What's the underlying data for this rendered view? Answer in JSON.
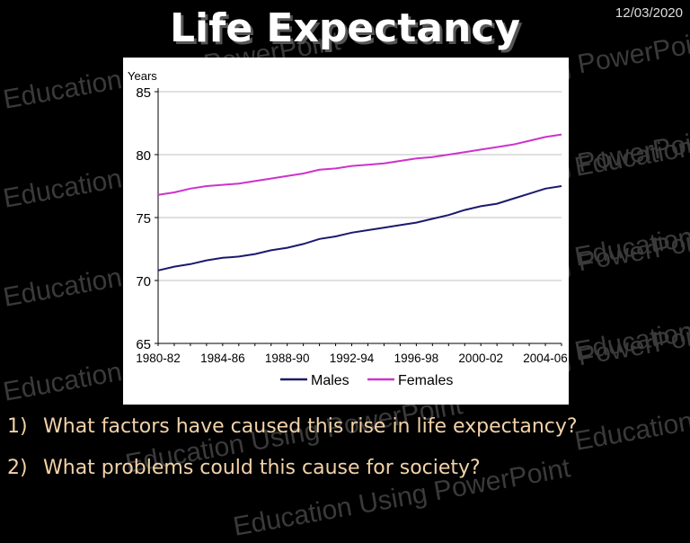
{
  "slide": {
    "title": "Life Expectancy",
    "date": "12/03/2020",
    "watermark": "Education Using PowerPoint",
    "questions": [
      {
        "number": "1)",
        "text": "What factors have caused this rise in life expectancy?"
      },
      {
        "number": "2)",
        "text": "What problems could this cause for society?"
      }
    ]
  },
  "colors": {
    "background": "#000000",
    "title": "#ffffff",
    "question_text": "#f2d2a8",
    "males": "#1a1a6e",
    "females": "#cc33cc",
    "gridline": "#c0c0c0"
  },
  "chart_data": {
    "type": "line",
    "title": "",
    "ylabel": "Years",
    "xlabel": "",
    "ylim": [
      65,
      85
    ],
    "yticks": [
      65,
      70,
      75,
      80,
      85
    ],
    "grid": true,
    "legend_position": "bottom",
    "x": [
      "1980-82",
      "1981-83",
      "1982-84",
      "1983-85",
      "1984-86",
      "1985-87",
      "1986-88",
      "1987-89",
      "1988-90",
      "1989-91",
      "1990-92",
      "1991-93",
      "1992-94",
      "1993-95",
      "1994-96",
      "1995-97",
      "1996-98",
      "1997-99",
      "1998-00",
      "1999-01",
      "2000-02",
      "2001-03",
      "2002-04",
      "2003-05",
      "2004-06",
      "2005-07"
    ],
    "xtick_labels": [
      "1980-82",
      "1984-86",
      "1988-90",
      "1992-94",
      "1996-98",
      "2000-02",
      "2004-06"
    ],
    "series": [
      {
        "name": "Males",
        "color": "#1a1a6e",
        "values": [
          70.8,
          71.1,
          71.3,
          71.6,
          71.8,
          71.9,
          72.1,
          72.4,
          72.6,
          72.9,
          73.3,
          73.5,
          73.8,
          74.0,
          74.2,
          74.4,
          74.6,
          74.9,
          75.2,
          75.6,
          75.9,
          76.1,
          76.5,
          76.9,
          77.3,
          77.5
        ]
      },
      {
        "name": "Females",
        "color": "#cc33cc",
        "values": [
          76.8,
          77.0,
          77.3,
          77.5,
          77.6,
          77.7,
          77.9,
          78.1,
          78.3,
          78.5,
          78.8,
          78.9,
          79.1,
          79.2,
          79.3,
          79.5,
          79.7,
          79.8,
          80.0,
          80.2,
          80.4,
          80.6,
          80.8,
          81.1,
          81.4,
          81.6
        ]
      }
    ]
  }
}
